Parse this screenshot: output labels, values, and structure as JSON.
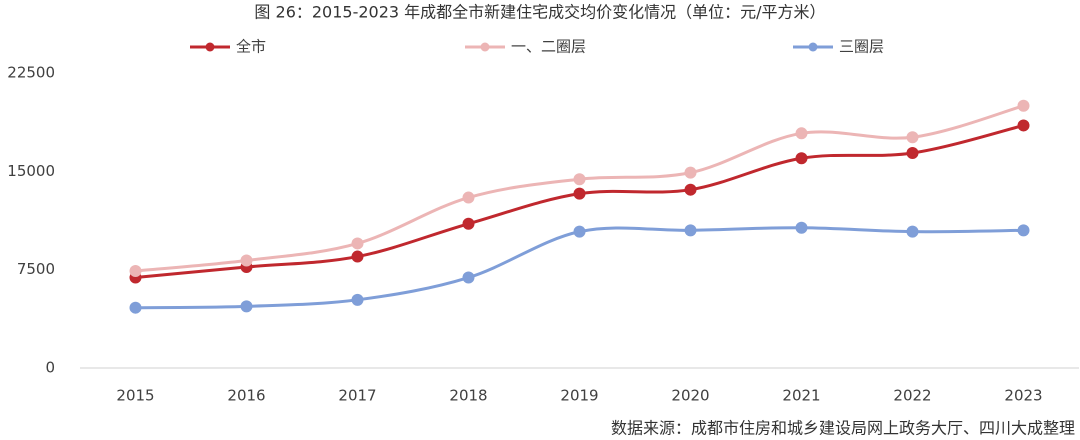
{
  "chart_data": {
    "type": "line",
    "title": "图 26：2015-2023 年成都全市新建住宅成交均价变化情况（单位：元/平方米）",
    "note": "数据来源：成都市住房和城乡建设局网上政务大厅、四川大成整理",
    "categories": [
      "2015",
      "2016",
      "2017",
      "2018",
      "2019",
      "2020",
      "2021",
      "2022",
      "2023"
    ],
    "series": [
      {
        "name": "全市",
        "color": "#c0282e",
        "values": [
          6900,
          7700,
          8500,
          11000,
          13300,
          13600,
          16000,
          16400,
          18500
        ]
      },
      {
        "name": "一、二圈层",
        "color": "#ecb5b5",
        "values": [
          7400,
          8200,
          9500,
          13000,
          14400,
          14900,
          17900,
          17600,
          20000
        ]
      },
      {
        "name": "三圈层",
        "color": "#7f9ed8",
        "values": [
          4600,
          4700,
          5200,
          6900,
          10400,
          10500,
          10700,
          10400,
          10500
        ]
      }
    ],
    "ylim": [
      0,
      22500
    ],
    "yticks": [
      0,
      7500,
      15000,
      22500
    ],
    "grid": false,
    "legend": "top"
  }
}
